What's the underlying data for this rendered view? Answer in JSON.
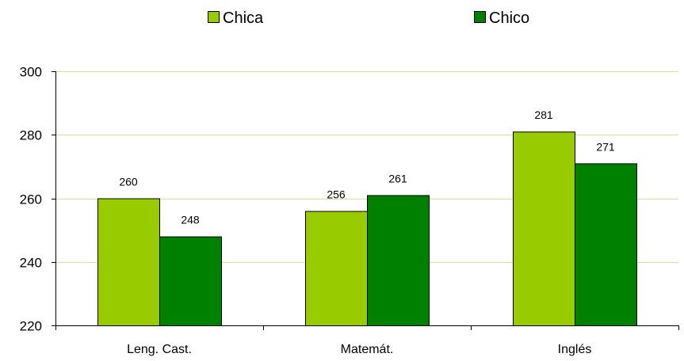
{
  "chart_data": {
    "type": "bar",
    "title": "",
    "xlabel": "",
    "ylabel": "",
    "categories": [
      "Leng. Cast.",
      "Matemát.",
      "Inglés"
    ],
    "series": [
      {
        "name": "Chica",
        "values": [
          260,
          256,
          281
        ],
        "color": "#99CC00"
      },
      {
        "name": "Chico",
        "values": [
          248,
          261,
          271
        ],
        "color": "#008000"
      }
    ],
    "ylim": [
      220,
      300
    ],
    "yticks": [
      220,
      240,
      260,
      280,
      300
    ],
    "ytick_labels": [
      "220",
      "240",
      "260",
      "280",
      "300"
    ],
    "grid": true,
    "gridline_color": "#C8E6A0",
    "legend": "top",
    "data_labels": true
  }
}
